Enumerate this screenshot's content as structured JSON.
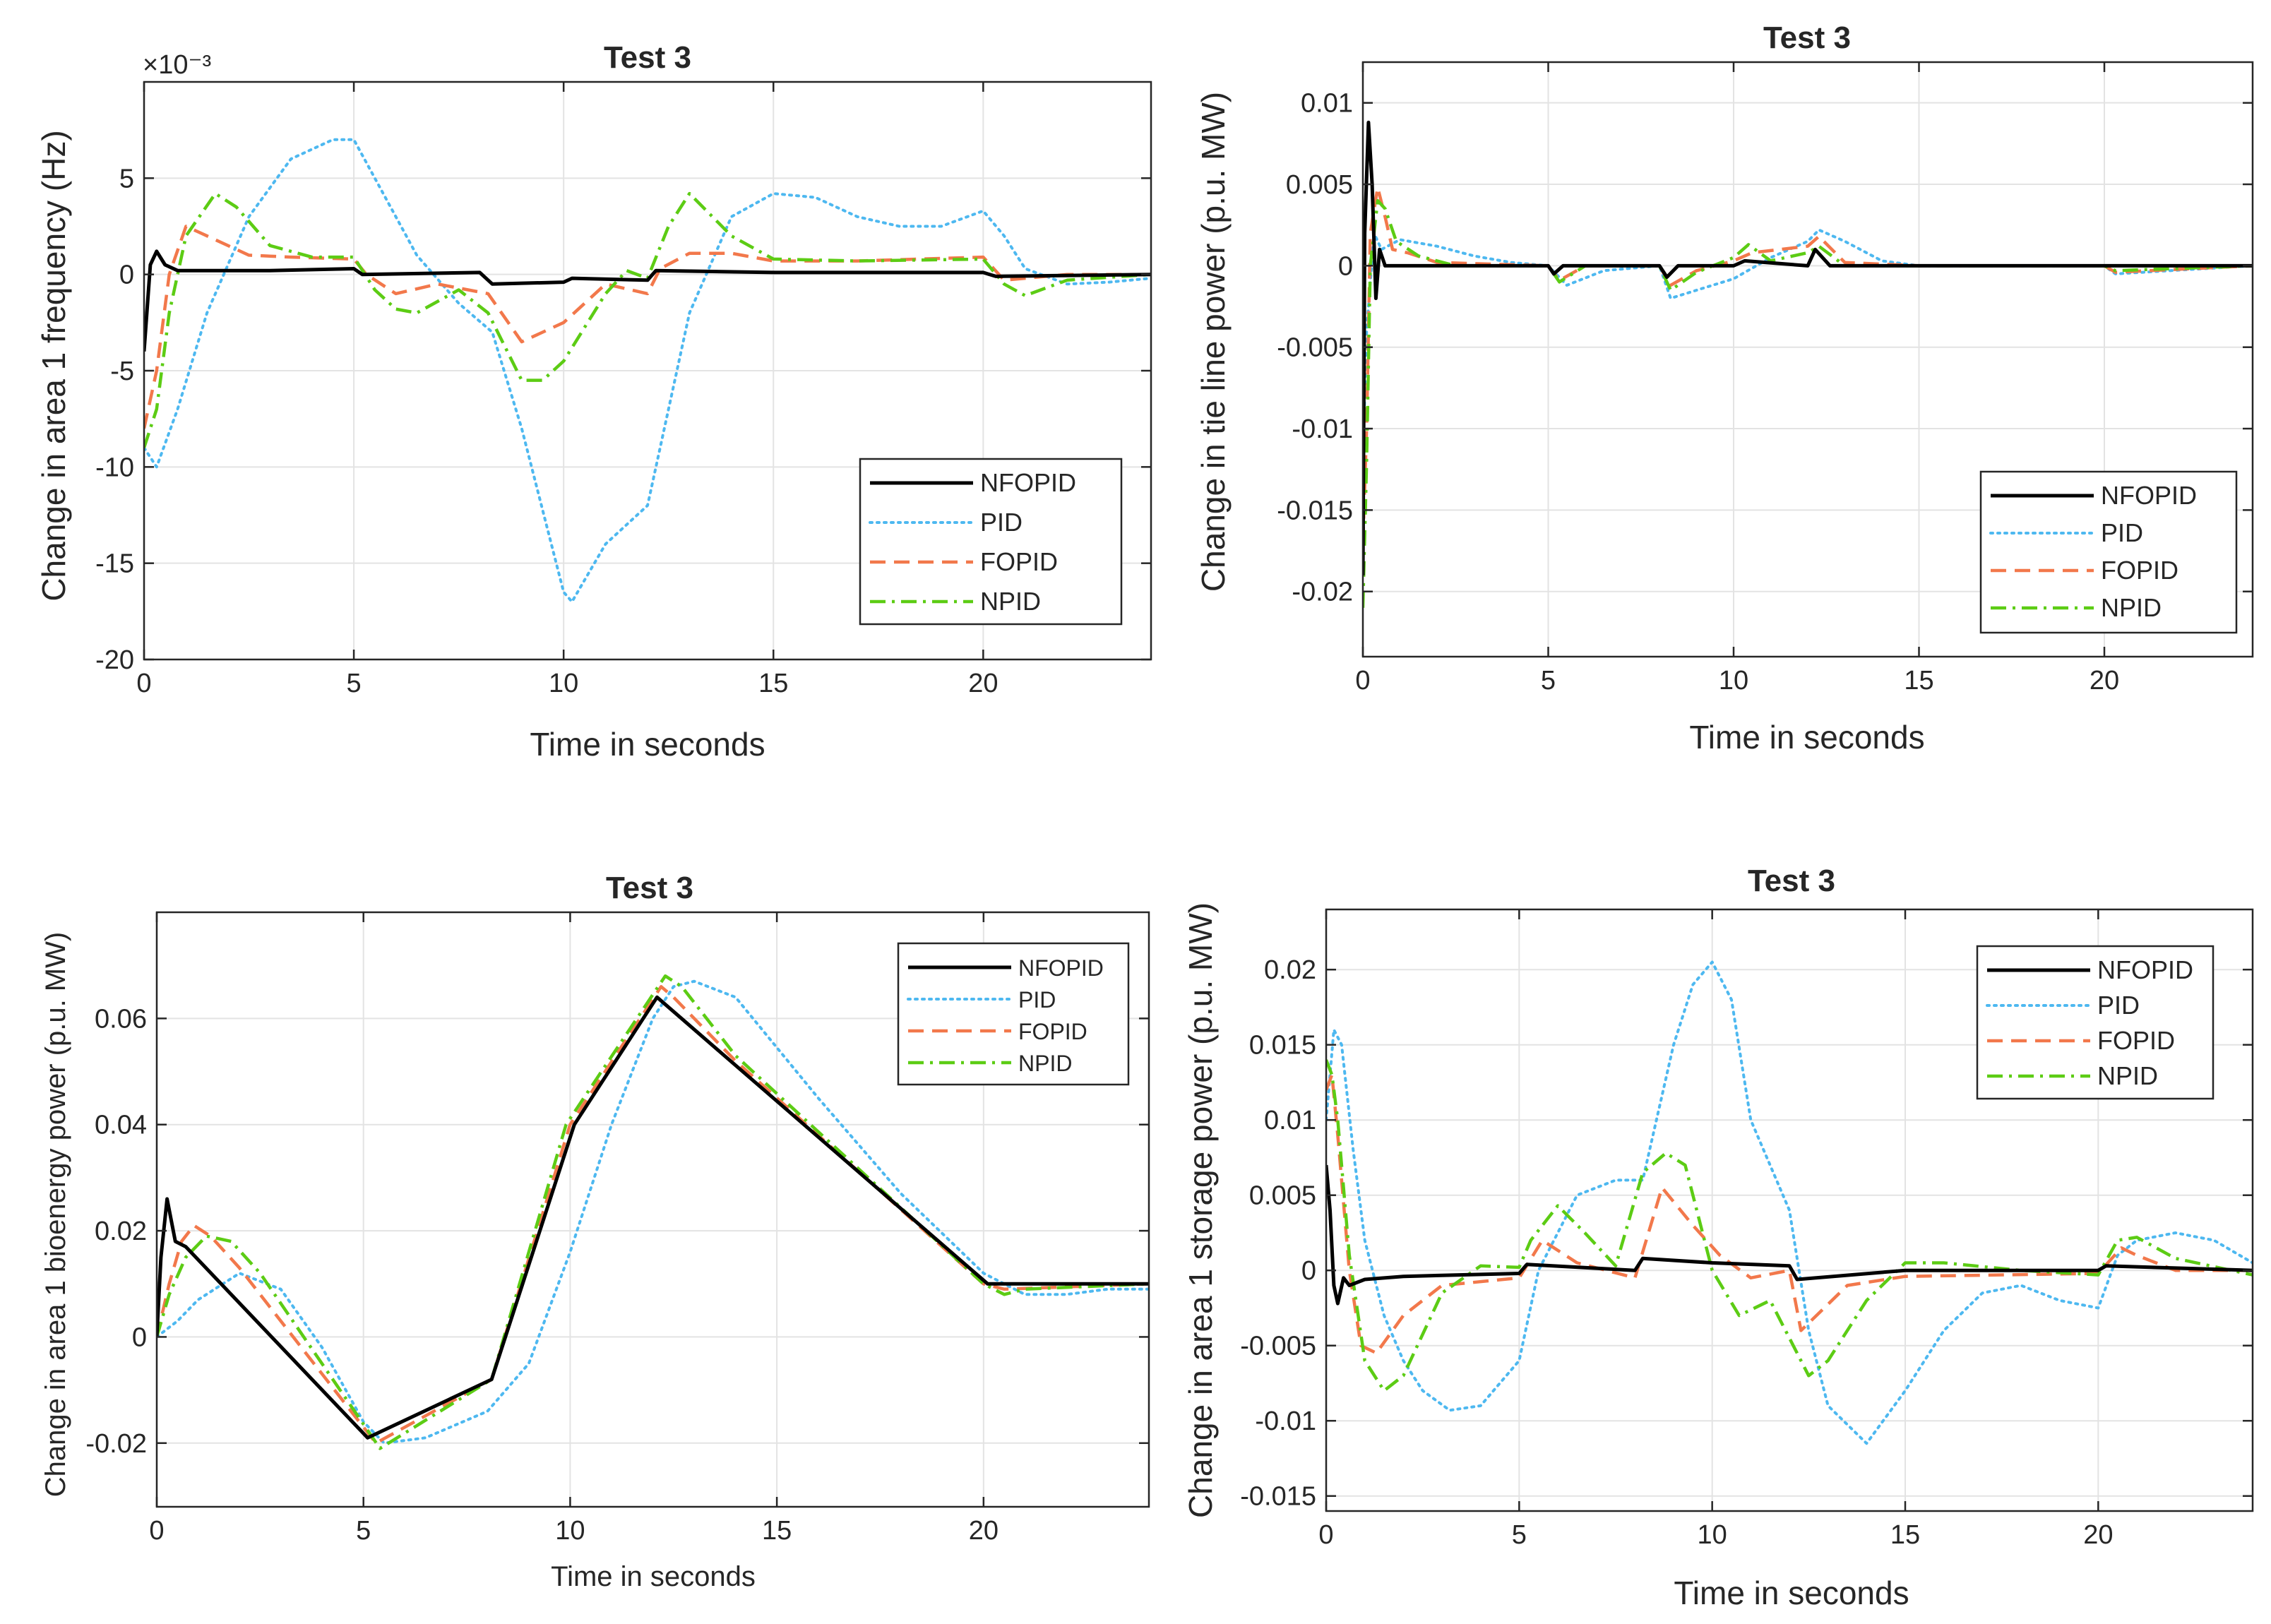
{
  "colors": {
    "NFOPID": "#000000",
    "PID": "#4db8f0",
    "FOPID": "#f2784b",
    "NPID": "#5ccc14"
  },
  "chart_data": [
    {
      "type": "line",
      "title": "Test 3",
      "xlabel": "Time in seconds",
      "ylabel": "Change in area 1 frequency (Hz)",
      "exponent": "×10⁻³",
      "xlim": [
        0,
        24
      ],
      "ylim": [
        -20,
        10
      ],
      "xticks": [
        0,
        5,
        10,
        15,
        20
      ],
      "yticks": [
        -20,
        -15,
        -10,
        -5,
        0,
        5
      ],
      "ytick_labels": [
        "-20",
        "-15",
        "-10",
        "-5",
        "0",
        "5"
      ],
      "legend": "bottom-right",
      "series": [
        {
          "name": "NFOPID",
          "style": "solid",
          "x": [
            0,
            0.15,
            0.3,
            0.5,
            0.8,
            1.5,
            3,
            5,
            5.2,
            8,
            8.3,
            10,
            10.2,
            12,
            12.2,
            15,
            20,
            20.3,
            24
          ],
          "y": [
            -4,
            0.5,
            1.2,
            0.5,
            0.2,
            0.2,
            0.2,
            0.3,
            0,
            0.1,
            -0.5,
            -0.4,
            -0.2,
            -0.3,
            0.2,
            0.1,
            0.1,
            -0.1,
            0
          ]
        },
        {
          "name": "PID",
          "style": "dotted",
          "x": [
            0,
            0.3,
            0.8,
            1.5,
            2.5,
            3.5,
            4.5,
            5,
            5.5,
            6.5,
            7.5,
            8.3,
            9,
            10,
            10.2,
            11,
            12,
            13,
            14,
            15,
            16,
            17,
            18,
            19,
            20,
            20.5,
            21,
            22,
            23,
            24
          ],
          "y": [
            -9,
            -10,
            -7,
            -2,
            3,
            6,
            7,
            7,
            5,
            1,
            -1.5,
            -3,
            -8,
            -16.5,
            -17,
            -14,
            -12,
            -2,
            3,
            4.2,
            4,
            3,
            2.5,
            2.5,
            3.3,
            2,
            0.3,
            -0.5,
            -0.4,
            -0.2
          ]
        },
        {
          "name": "FOPID",
          "style": "dashed",
          "x": [
            0,
            0.3,
            0.6,
            1,
            1.5,
            2.5,
            3.5,
            5,
            5.3,
            6,
            7,
            8.2,
            9,
            10,
            10.5,
            11,
            12,
            12.3,
            13,
            14,
            15,
            17,
            20,
            20.5,
            21,
            22,
            24
          ],
          "y": [
            -8,
            -5,
            0,
            2.5,
            2,
            1,
            0.9,
            0.8,
            0,
            -1,
            -0.5,
            -1,
            -3.5,
            -2.5,
            -1.5,
            -0.5,
            -1,
            0.3,
            1.1,
            1.1,
            0.7,
            0.7,
            0.9,
            -0.3,
            -0.2,
            0,
            0
          ]
        },
        {
          "name": "NPID",
          "style": "dashdot",
          "x": [
            0,
            0.3,
            0.6,
            1,
            1.7,
            2.2,
            3,
            4,
            5,
            5.5,
            6,
            6.5,
            7.5,
            8.2,
            9,
            9.5,
            10,
            11,
            11.5,
            12,
            12.5,
            13,
            14,
            15,
            17,
            20,
            20.5,
            21,
            22,
            24
          ],
          "y": [
            -9,
            -7,
            -2,
            2,
            4.2,
            3.5,
            1.5,
            0.9,
            0.9,
            -0.8,
            -1.8,
            -2,
            -0.8,
            -2,
            -5.5,
            -5.5,
            -4.5,
            -1,
            0.2,
            -0.2,
            2.5,
            4.2,
            2,
            0.8,
            0.7,
            0.8,
            -0.5,
            -1.1,
            -0.3,
            0
          ]
        }
      ]
    },
    {
      "type": "line",
      "title": "Test 3",
      "xlabel": "Time in seconds",
      "ylabel": "Change in tie line power (p.u. MW)",
      "xlim": [
        0,
        24
      ],
      "ylim": [
        -0.024,
        0.0125
      ],
      "xticks": [
        0,
        5,
        10,
        15,
        20
      ],
      "yticks": [
        -0.02,
        -0.015,
        -0.01,
        -0.005,
        0,
        0.005,
        0.01
      ],
      "ytick_labels": [
        "-0.02",
        "-0.015",
        "-0.01",
        "-0.005",
        "0",
        "0.005",
        "0.01"
      ],
      "legend": "bottom-right",
      "series": [
        {
          "name": "NFOPID",
          "style": "solid",
          "x": [
            0,
            0.05,
            0.15,
            0.25,
            0.35,
            0.45,
            0.6,
            0.9,
            5,
            5.15,
            5.4,
            8,
            8.2,
            8.5,
            10,
            10.3,
            12,
            12.2,
            12.6,
            24
          ],
          "y": [
            -0.019,
            0.002,
            0.0088,
            0.005,
            -0.002,
            0.001,
            0,
            0,
            0,
            -0.0005,
            0,
            0,
            -0.0007,
            0,
            0,
            0.0003,
            0,
            0.001,
            0,
            0
          ]
        },
        {
          "name": "PID",
          "style": "dotted",
          "x": [
            0,
            0.1,
            0.3,
            0.5,
            1,
            2,
            3,
            4,
            5,
            5.5,
            6.5,
            8,
            8.3,
            9,
            10,
            11,
            12,
            12.3,
            13,
            14,
            15,
            20,
            20.3,
            24
          ],
          "y": [
            -0.012,
            -0.004,
            0.002,
            0.001,
            0.0016,
            0.0012,
            0.0006,
            0.0002,
            0,
            -0.0012,
            -0.0003,
            0,
            -0.002,
            -0.0015,
            -0.0008,
            0.0005,
            0.0015,
            0.0022,
            0.0015,
            0.0003,
            0,
            0,
            -0.0005,
            0
          ]
        },
        {
          "name": "FOPID",
          "style": "dashed",
          "x": [
            0,
            0.1,
            0.2,
            0.4,
            0.6,
            0.8,
            1.2,
            2,
            5,
            5.3,
            6,
            8,
            8.3,
            9,
            10,
            10.5,
            12,
            12.3,
            13,
            15,
            20,
            20.3,
            24
          ],
          "y": [
            -0.017,
            -0.01,
            0.002,
            0.0048,
            0.003,
            0.001,
            0.0008,
            0.0002,
            0,
            -0.0009,
            0,
            0,
            -0.0012,
            -0.0003,
            0.0003,
            0.0008,
            0.0012,
            0.0018,
            0.0002,
            0,
            0,
            -0.0004,
            0
          ]
        },
        {
          "name": "NPID",
          "style": "dashdot",
          "x": [
            0,
            0.1,
            0.2,
            0.4,
            0.6,
            0.9,
            1.5,
            2.5,
            5,
            5.3,
            6,
            8,
            8.3,
            9,
            10,
            10.4,
            11,
            12,
            12.3,
            13,
            15,
            20,
            20.3,
            24
          ],
          "y": [
            -0.021,
            -0.012,
            0,
            0.004,
            0.0035,
            0.0015,
            0.0006,
            0,
            0,
            -0.001,
            0,
            0,
            -0.0015,
            -0.0004,
            0.0005,
            0.0013,
            0.0003,
            0.0008,
            0.0012,
            0,
            0,
            0,
            -0.0003,
            0
          ]
        }
      ]
    },
    {
      "type": "line",
      "title": "Test 3",
      "xlabel": "Time in seconds",
      "ylabel": "Change in area 1 bioenergy power (p.u. MW)",
      "xlim": [
        0,
        24
      ],
      "ylim": [
        -0.032,
        0.08
      ],
      "xticks": [
        0,
        5,
        10,
        15,
        20
      ],
      "yticks": [
        -0.02,
        0,
        0.02,
        0.04,
        0.06
      ],
      "ytick_labels": [
        "-0.02",
        "0",
        "0.02",
        "0.04",
        "0.06"
      ],
      "legend": "top-right",
      "series": [
        {
          "name": "NFOPID",
          "style": "solid",
          "x": [
            0,
            0.1,
            0.25,
            0.45,
            0.7,
            5.1,
            8.1,
            10.1,
            12.1,
            20.1,
            24
          ],
          "y": [
            0,
            0.015,
            0.026,
            0.018,
            0.017,
            -0.019,
            -0.008,
            0.04,
            0.064,
            0.01,
            0.01
          ]
        },
        {
          "name": "PID",
          "style": "dotted",
          "x": [
            0,
            0.5,
            1,
            2,
            3,
            4,
            5,
            5.5,
            6.5,
            8,
            9,
            10,
            11,
            12,
            12.5,
            13,
            14,
            16,
            18,
            20,
            21,
            22,
            23,
            24
          ],
          "y": [
            0,
            0.003,
            0.007,
            0.012,
            0.009,
            -0.002,
            -0.016,
            -0.02,
            -0.019,
            -0.014,
            -0.005,
            0.016,
            0.04,
            0.06,
            0.066,
            0.067,
            0.064,
            0.045,
            0.027,
            0.012,
            0.008,
            0.008,
            0.009,
            0.009
          ]
        },
        {
          "name": "FOPID",
          "style": "dashed",
          "x": [
            0,
            0.3,
            0.6,
            0.9,
            1.3,
            2,
            5.3,
            8.1,
            10,
            12.2,
            12.5,
            14,
            20,
            20.5,
            24
          ],
          "y": [
            0,
            0.01,
            0.018,
            0.021,
            0.019,
            0.013,
            -0.02,
            -0.008,
            0.04,
            0.066,
            0.064,
            0.052,
            0.01,
            0.009,
            0.01
          ]
        },
        {
          "name": "NPID",
          "style": "dashdot",
          "x": [
            0,
            0.3,
            0.7,
            1.2,
            1.8,
            2.5,
            5.4,
            8.1,
            9.9,
            12.3,
            12.7,
            14,
            20,
            20.5,
            21,
            24
          ],
          "y": [
            0,
            0.008,
            0.015,
            0.019,
            0.018,
            0.012,
            -0.021,
            -0.008,
            0.04,
            0.068,
            0.066,
            0.053,
            0.01,
            0.008,
            0.009,
            0.01
          ]
        }
      ]
    },
    {
      "type": "line",
      "title": "Test 3",
      "xlabel": "Time in seconds",
      "ylabel": "Change in area 1 storage power (p.u. MW)",
      "xlim": [
        0,
        24
      ],
      "ylim": [
        -0.016,
        0.024
      ],
      "xticks": [
        0,
        5,
        10,
        15,
        20
      ],
      "yticks": [
        -0.015,
        -0.01,
        -0.005,
        0,
        0.005,
        0.01,
        0.015,
        0.02
      ],
      "ytick_labels": [
        "-0.015",
        "-0.01",
        "-0.005",
        "0",
        "0.005",
        "0.01",
        "0.015",
        "0.02"
      ],
      "legend": "top-right",
      "series": [
        {
          "name": "NFOPID",
          "style": "solid",
          "x": [
            0,
            0.1,
            0.2,
            0.3,
            0.45,
            0.6,
            1,
            2,
            5,
            5.2,
            8,
            8.2,
            10,
            12,
            12.2,
            15,
            20,
            20.2,
            24
          ],
          "y": [
            0.007,
            0.004,
            -0.001,
            -0.0022,
            -0.0005,
            -0.001,
            -0.0006,
            -0.0004,
            -0.0002,
            0.0004,
            0,
            0.0008,
            0.0005,
            0.0003,
            -0.0006,
            0,
            0,
            0.0003,
            0
          ]
        },
        {
          "name": "PID",
          "style": "dotted",
          "x": [
            0,
            0.2,
            0.4,
            0.7,
            1,
            1.5,
            2,
            2.5,
            3.2,
            4,
            5,
            5.5,
            6.5,
            7.5,
            8.2,
            9,
            9.5,
            10,
            10.5,
            11,
            12,
            12.5,
            13,
            14,
            15,
            16,
            17,
            18,
            19,
            20,
            20.5,
            21,
            22,
            23,
            24
          ],
          "y": [
            0.01,
            0.016,
            0.015,
            0.008,
            0.002,
            -0.003,
            -0.006,
            -0.008,
            -0.0093,
            -0.009,
            -0.006,
            0,
            0.005,
            0.006,
            0.006,
            0.015,
            0.019,
            0.0205,
            0.018,
            0.01,
            0.004,
            -0.004,
            -0.009,
            -0.0115,
            -0.008,
            -0.004,
            -0.0015,
            -0.001,
            -0.002,
            -0.0025,
            0.001,
            0.002,
            0.0025,
            0.002,
            0.0005
          ]
        },
        {
          "name": "FOPID",
          "style": "dashed",
          "x": [
            0,
            0.15,
            0.3,
            0.6,
            0.9,
            1.3,
            2,
            3,
            5,
            5.6,
            6.5,
            8,
            8.7,
            9.5,
            10.2,
            11,
            12,
            12.3,
            12.7,
            13.5,
            15,
            20,
            20.6,
            21,
            22,
            24
          ],
          "y": [
            0.012,
            0.013,
            0.009,
            0,
            -0.005,
            -0.0055,
            -0.003,
            -0.001,
            -0.0005,
            0.002,
            0.0005,
            -0.0005,
            0.0055,
            0.003,
            0.001,
            -0.0005,
            0,
            -0.004,
            -0.003,
            -0.001,
            -0.0004,
            -0.0002,
            0.0015,
            0.001,
            0,
            0
          ]
        },
        {
          "name": "NPID",
          "style": "dashdot",
          "x": [
            0,
            0.15,
            0.3,
            0.6,
            1,
            1.5,
            2,
            3,
            4,
            5,
            5.3,
            6,
            6.7,
            7.5,
            8.2,
            8.8,
            9.3,
            10,
            10.7,
            11.5,
            12.5,
            13,
            14,
            15,
            16,
            18,
            20,
            20.5,
            21,
            22,
            24
          ],
          "y": [
            0.014,
            0.013,
            0.01,
            0.001,
            -0.006,
            -0.008,
            -0.007,
            -0.0015,
            0.0003,
            0.0002,
            0.002,
            0.0043,
            0.0025,
            0.0003,
            0.0065,
            0.0078,
            0.007,
            0,
            -0.003,
            -0.002,
            -0.007,
            -0.006,
            -0.002,
            0.0005,
            0.0005,
            0,
            -0.0003,
            0.002,
            0.0022,
            0.0008,
            -0.0003
          ]
        }
      ]
    }
  ]
}
